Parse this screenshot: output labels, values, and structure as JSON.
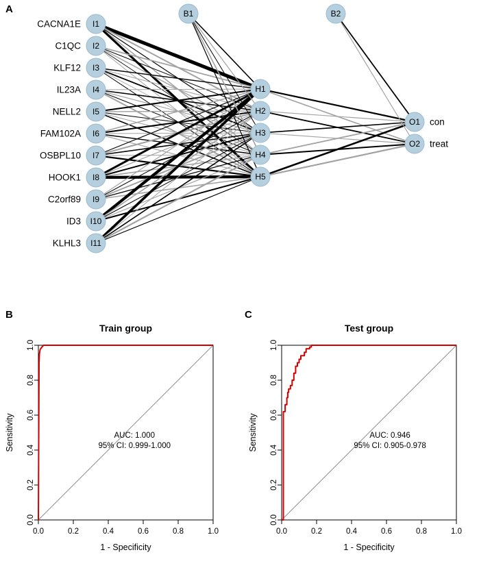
{
  "panel_labels": [
    "A",
    "B",
    "C"
  ],
  "network": {
    "node_fill": "#b5cfde",
    "node_stroke": "#9bbccf",
    "positive_edge_color": "#000000",
    "negative_edge_color": "#a3a3a3",
    "input_nodes": [
      {
        "id": "I1",
        "gene": "CACNA1E"
      },
      {
        "id": "I2",
        "gene": "C1QC"
      },
      {
        "id": "I3",
        "gene": "KLF12"
      },
      {
        "id": "I4",
        "gene": "IL23A"
      },
      {
        "id": "I5",
        "gene": "NELL2"
      },
      {
        "id": "I6",
        "gene": "FAM102A"
      },
      {
        "id": "I7",
        "gene": "OSBPL10"
      },
      {
        "id": "I8",
        "gene": "HOOK1"
      },
      {
        "id": "I9",
        "gene": "C2orf89"
      },
      {
        "id": "I10",
        "gene": "ID3"
      },
      {
        "id": "I11",
        "gene": "KLHL3"
      }
    ],
    "bias_nodes": [
      "B1",
      "B2"
    ],
    "hidden_nodes": [
      "H1",
      "H2",
      "H3",
      "H4",
      "H5"
    ],
    "output_nodes": [
      {
        "id": "O1",
        "label": "con"
      },
      {
        "id": "O2",
        "label": "treat"
      }
    ],
    "weights_input_hidden": [
      [
        5.0,
        -2.0,
        1.2,
        -1.5,
        3.2
      ],
      [
        -1.8,
        1.0,
        -1.4,
        0.8,
        -1.0
      ],
      [
        1.4,
        -1.0,
        1.8,
        -0.8,
        1.0
      ],
      [
        -1.0,
        1.6,
        -1.2,
        1.0,
        -2.0
      ],
      [
        2.0,
        -1.4,
        1.0,
        -1.0,
        1.6
      ],
      [
        -1.6,
        2.0,
        -1.0,
        1.4,
        -1.2
      ],
      [
        1.2,
        -2.2,
        1.6,
        -1.0,
        2.2
      ],
      [
        3.0,
        -1.2,
        2.0,
        -1.6,
        4.2
      ],
      [
        -1.2,
        1.0,
        -2.0,
        1.2,
        -1.6
      ],
      [
        4.2,
        -1.6,
        1.0,
        -1.2,
        2.0
      ],
      [
        3.6,
        -1.0,
        1.6,
        -2.2,
        1.2
      ]
    ],
    "weights_bias1_hidden": [
      1.6,
      -1.2,
      1.0,
      -1.6,
      1.2
    ],
    "weights_hidden_output": [
      [
        2.2,
        -1.6
      ],
      [
        -1.2,
        1.8
      ],
      [
        1.6,
        -1.2
      ],
      [
        -1.8,
        2.0
      ],
      [
        2.6,
        -2.2
      ]
    ],
    "weights_bias2_output": [
      1.8,
      -1.2
    ]
  },
  "chart_data": [
    {
      "type": "line",
      "title": "Train group",
      "xlabel": "1 - Specificity",
      "ylabel": "Sensitivity",
      "xlim": [
        0,
        1
      ],
      "ylim": [
        0,
        1
      ],
      "grid": false,
      "xticks": [
        "0.0",
        "0.2",
        "0.4",
        "0.6",
        "0.8",
        "1.0"
      ],
      "yticks": [
        "0.0",
        "0.2",
        "0.4",
        "0.6",
        "0.8",
        "1.0"
      ],
      "series": [
        {
          "name": "reference",
          "color": "#8f8f8f",
          "width": 1,
          "x": [
            0,
            1
          ],
          "y": [
            0,
            1
          ]
        },
        {
          "name": "roc",
          "color": "#d40000",
          "width": 2,
          "x": [
            0,
            0.004,
            0.006,
            0.01,
            0.02,
            0.03,
            1
          ],
          "y": [
            0,
            0.9,
            0.95,
            0.975,
            0.99,
            1.0,
            1.0
          ]
        }
      ],
      "annotation": {
        "color": "#d40000",
        "x": 0.55,
        "y": 0.47,
        "lines": [
          "AUC: 1.000",
          "95% CI: 0.999-1.000"
        ]
      }
    },
    {
      "type": "line",
      "title": "Test group",
      "xlabel": "1 - Specificity",
      "ylabel": "Sensitivity",
      "xlim": [
        0,
        1
      ],
      "ylim": [
        0,
        1
      ],
      "grid": false,
      "xticks": [
        "0.0",
        "0.2",
        "0.4",
        "0.6",
        "0.8",
        "1.0"
      ],
      "yticks": [
        "0.0",
        "0.2",
        "0.4",
        "0.6",
        "0.8",
        "1.0"
      ],
      "series": [
        {
          "name": "reference",
          "color": "#8f8f8f",
          "width": 1,
          "x": [
            0,
            1
          ],
          "y": [
            0,
            1
          ]
        },
        {
          "name": "roc",
          "color": "#d40000",
          "width": 2,
          "x": [
            0,
            0.01,
            0.01,
            0.02,
            0.02,
            0.03,
            0.03,
            0.035,
            0.035,
            0.04,
            0.04,
            0.05,
            0.05,
            0.06,
            0.06,
            0.07,
            0.07,
            0.08,
            0.08,
            0.09,
            0.09,
            0.1,
            0.1,
            0.11,
            0.11,
            0.13,
            0.13,
            0.14,
            0.14,
            0.16,
            0.16,
            0.17,
            0.17,
            1
          ],
          "y": [
            0,
            0,
            0.62,
            0.62,
            0.66,
            0.66,
            0.7,
            0.7,
            0.73,
            0.73,
            0.75,
            0.75,
            0.77,
            0.77,
            0.8,
            0.8,
            0.84,
            0.84,
            0.88,
            0.88,
            0.9,
            0.9,
            0.92,
            0.92,
            0.94,
            0.94,
            0.96,
            0.96,
            0.98,
            0.98,
            0.99,
            0.99,
            1.0,
            1.0
          ]
        }
      ],
      "annotation": {
        "color": "#d40000",
        "x": 0.62,
        "y": 0.47,
        "lines": [
          "AUC: 0.946",
          "95% CI: 0.905-0.978"
        ]
      }
    }
  ]
}
